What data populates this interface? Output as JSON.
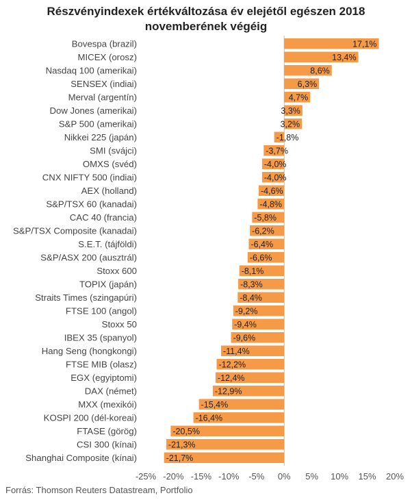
{
  "chart_data": {
    "type": "bar",
    "orientation": "horizontal",
    "title": [
      "Részvényindexek értékváltozása év elejétől egészen 2018",
      "novemberének végéig"
    ],
    "categories": [
      "Bovespa (brazil)",
      "MICEX (orosz)",
      "Nasdaq 100 (amerikai)",
      "SENSEX (indiai)",
      "Merval (argentín)",
      "Dow Jones (amerikai)",
      "S&P 500 (amerikai)",
      "Nikkei 225 (japán)",
      "SMI (svájci)",
      "OMXS (svéd)",
      "CNX NIFTY 500 (indiai)",
      "AEX (holland)",
      "S&P/TSX 60 (kanadai)",
      "CAC 40 (francia)",
      "S&P/TSX Composite (kanadai)",
      "S.E.T. (tájföldi)",
      "S&P/ASX 200 (ausztrál)",
      "Stoxx 600",
      "TOPIX (japán)",
      "Straits Times (szingapúri)",
      "FTSE 100 (angol)",
      "Stoxx 50",
      "IBEX 35 (spanyol)",
      "Hang Seng (hongkongi)",
      "FTSE MIB (olasz)",
      "EGX (egyiptomi)",
      "DAX (német)",
      "MXX (mexikói)",
      "KOSPI 200 (dél-koreai)",
      "FTASE (görög)",
      "CSI 300 (kínai)",
      "Shanghai Composite (kínai)"
    ],
    "values": [
      17.1,
      13.4,
      8.6,
      6.3,
      4.7,
      3.3,
      3.2,
      -1.8,
      -3.7,
      -4.0,
      -4.0,
      -4.6,
      -4.8,
      -5.8,
      -6.2,
      -6.4,
      -6.6,
      -8.1,
      -8.3,
      -8.4,
      -9.2,
      -9.4,
      -9.6,
      -11.4,
      -12.2,
      -12.4,
      -12.9,
      -15.4,
      -16.4,
      -20.5,
      -21.3,
      -21.7
    ],
    "value_labels": [
      "17,1%",
      "13,4%",
      "8,6%",
      "6,3%",
      "4,7%",
      "3,3%",
      "3,2%",
      "-1,8%",
      "-3,7%",
      "-4,0%",
      "-4,0%",
      "-4,6%",
      "-4,8%",
      "-5,8%",
      "-6,2%",
      "-6,4%",
      "-6,6%",
      "-8,1%",
      "-8,3%",
      "-8,4%",
      "-9,2%",
      "-9,4%",
      "-9,6%",
      "-11,4%",
      "-12,2%",
      "-12,4%",
      "-12,9%",
      "-15,4%",
      "-16,4%",
      "-20,5%",
      "-21,3%",
      "-21,7%"
    ],
    "xlim": [
      -25,
      20
    ],
    "xticks": [
      -25,
      -20,
      -15,
      -10,
      -5,
      0,
      5,
      10,
      15,
      20
    ],
    "xtick_labels": [
      "-25%",
      "-20%",
      "-15%",
      "-10%",
      "-5%",
      "0%",
      "5%",
      "10%",
      "15%",
      "20%"
    ],
    "grid": false,
    "legend": "none"
  },
  "colors": {
    "bar": "#F59B48",
    "text": "#444444",
    "axis": "#bbbbbb"
  },
  "footer": {
    "source": "Forrás: Thomson Reuters Datastream, Portfolio"
  }
}
